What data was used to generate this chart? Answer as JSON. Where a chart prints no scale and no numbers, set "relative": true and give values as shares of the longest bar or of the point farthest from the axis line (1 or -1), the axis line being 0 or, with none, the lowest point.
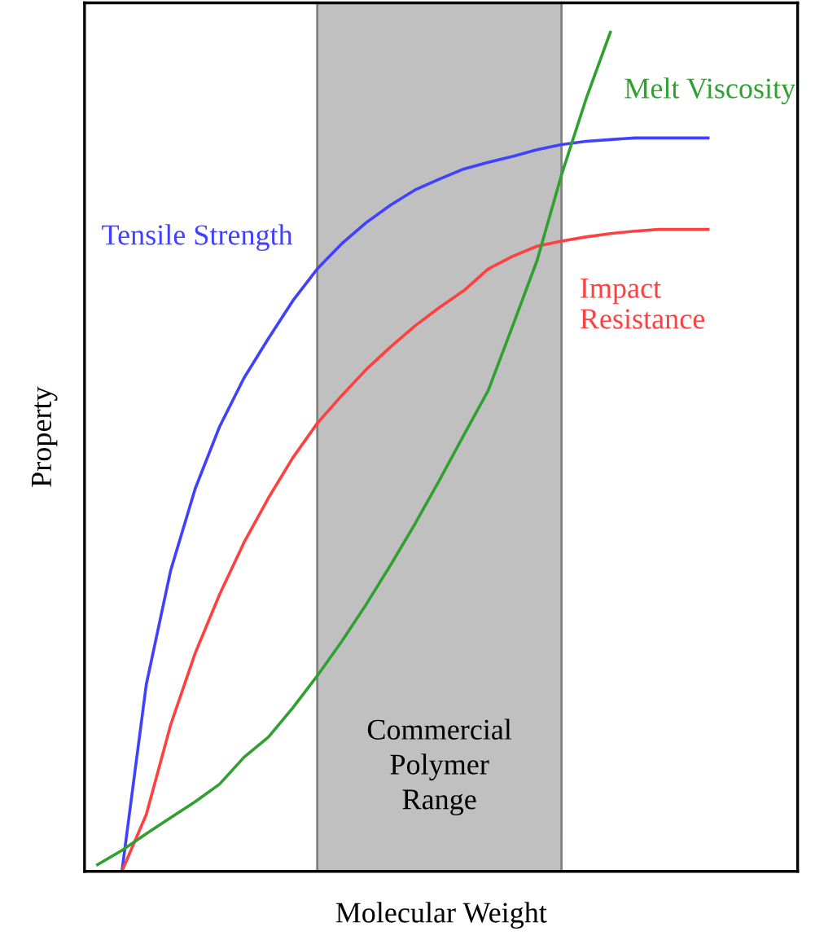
{
  "chart_data": {
    "type": "line",
    "relative": true,
    "xlabel": "Molecular Weight",
    "ylabel": "Property",
    "legend": false,
    "marker": "none",
    "line_style": "solid",
    "categories": [
      null,
      null,
      null,
      null,
      null,
      null,
      null,
      null,
      null,
      null,
      null,
      null,
      null,
      null,
      null,
      null,
      null,
      null,
      null,
      null,
      null,
      null,
      null,
      null,
      null,
      null,
      null,
      null,
      null
    ],
    "annotations": [
      "Commercial\nPolymer\nRange"
    ],
    "series": [
      {
        "name": "Tensile Strength",
        "color": "#4040ff",
        "values": [
          null,
          0,
          0.223,
          0.359,
          0.456,
          0.53,
          0.588,
          0.635,
          0.68,
          0.718,
          0.748,
          0.773,
          0.794,
          0.812,
          0.825,
          0.837,
          0.845,
          0.852,
          0.86,
          0.866,
          0.87,
          0.872,
          0.874,
          0.874,
          0.874,
          0.874,
          null,
          null,
          null
        ]
      },
      {
        "name": "Impact\nResistance",
        "color": "#ff4040",
        "values": [
          null,
          0,
          0.068,
          0.175,
          0.26,
          0.33,
          0.392,
          0.445,
          0.493,
          0.534,
          0.567,
          0.598,
          0.625,
          0.65,
          0.672,
          0.692,
          0.718,
          0.733,
          0.745,
          0.751,
          0.756,
          0.76,
          0.763,
          0.765,
          0.765,
          0.765,
          null,
          null,
          null
        ]
      },
      {
        "name": "Melt Viscosity",
        "color": "#30a030",
        "values": [
          0.008,
          0.025,
          0.045,
          0.064,
          0.083,
          0.104,
          0.136,
          0.16,
          0.195,
          0.233,
          0.274,
          0.318,
          0.365,
          0.414,
          0.466,
          0.52,
          0.573,
          0.65,
          0.728,
          0.83,
          0.92,
          1.0,
          null,
          null,
          null,
          null,
          null,
          null,
          null
        ]
      }
    ]
  }
}
